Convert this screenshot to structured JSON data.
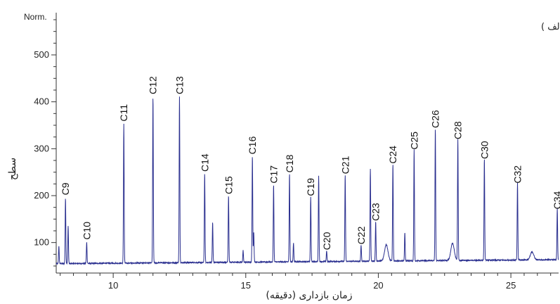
{
  "chart_data": {
    "type": "line",
    "panel_label": "( الف )",
    "ylabel": "سطح",
    "xlabel": "زمان بازداری (دقیقه)",
    "y_unit_label": "Norm.",
    "xlim": [
      7.85,
      26.8
    ],
    "ylim": [
      35,
      590
    ],
    "x_ticks": [
      10,
      15,
      20,
      25
    ],
    "y_ticks": [
      100,
      200,
      300,
      400,
      500
    ],
    "baseline": 55,
    "series_color": "#2a2f8f",
    "peaks": [
      {
        "label": "C9",
        "x": 8.2,
        "y": 195
      },
      {
        "label": "C10",
        "x": 9.0,
        "y": 100
      },
      {
        "label": "C11",
        "x": 10.4,
        "y": 352
      },
      {
        "label": "C12",
        "x": 11.5,
        "y": 410
      },
      {
        "label": "C13",
        "x": 12.5,
        "y": 410
      },
      {
        "label": "C14",
        "x": 13.45,
        "y": 245
      },
      {
        "label": "C15",
        "x": 14.35,
        "y": 197
      },
      {
        "label": "C16",
        "x": 15.25,
        "y": 282
      },
      {
        "label": "C17",
        "x": 16.05,
        "y": 220
      },
      {
        "label": "C18",
        "x": 16.65,
        "y": 243
      },
      {
        "label": "C19",
        "x": 17.45,
        "y": 193
      },
      {
        "label": "C20",
        "x": 18.05,
        "y": 78
      },
      {
        "label": "C21",
        "x": 18.75,
        "y": 240
      },
      {
        "label": "C22",
        "x": 19.35,
        "y": 90
      },
      {
        "label": "C23",
        "x": 19.9,
        "y": 140
      },
      {
        "label": "C24",
        "x": 20.55,
        "y": 262
      },
      {
        "label": "C25",
        "x": 21.35,
        "y": 292
      },
      {
        "label": "C26",
        "x": 22.15,
        "y": 338
      },
      {
        "label": "C28",
        "x": 23.0,
        "y": 314
      },
      {
        "label": "C30",
        "x": 24.0,
        "y": 272
      },
      {
        "label": "C32",
        "x": 25.25,
        "y": 220
      },
      {
        "label": "C34",
        "x": 26.75,
        "y": 165
      }
    ],
    "minor_peaks": [
      {
        "x": 7.95,
        "y": 92
      },
      {
        "x": 8.3,
        "y": 135
      },
      {
        "x": 13.75,
        "y": 140
      },
      {
        "x": 15.3,
        "y": 120
      },
      {
        "x": 17.75,
        "y": 238
      },
      {
        "x": 19.7,
        "y": 252
      },
      {
        "x": 21.0,
        "y": 115
      },
      {
        "x": 16.8,
        "y": 95
      },
      {
        "x": 14.9,
        "y": 80
      }
    ],
    "humps": [
      {
        "x": 20.3,
        "y": 90
      },
      {
        "x": 22.8,
        "y": 92
      },
      {
        "x": 25.8,
        "y": 72
      }
    ]
  }
}
